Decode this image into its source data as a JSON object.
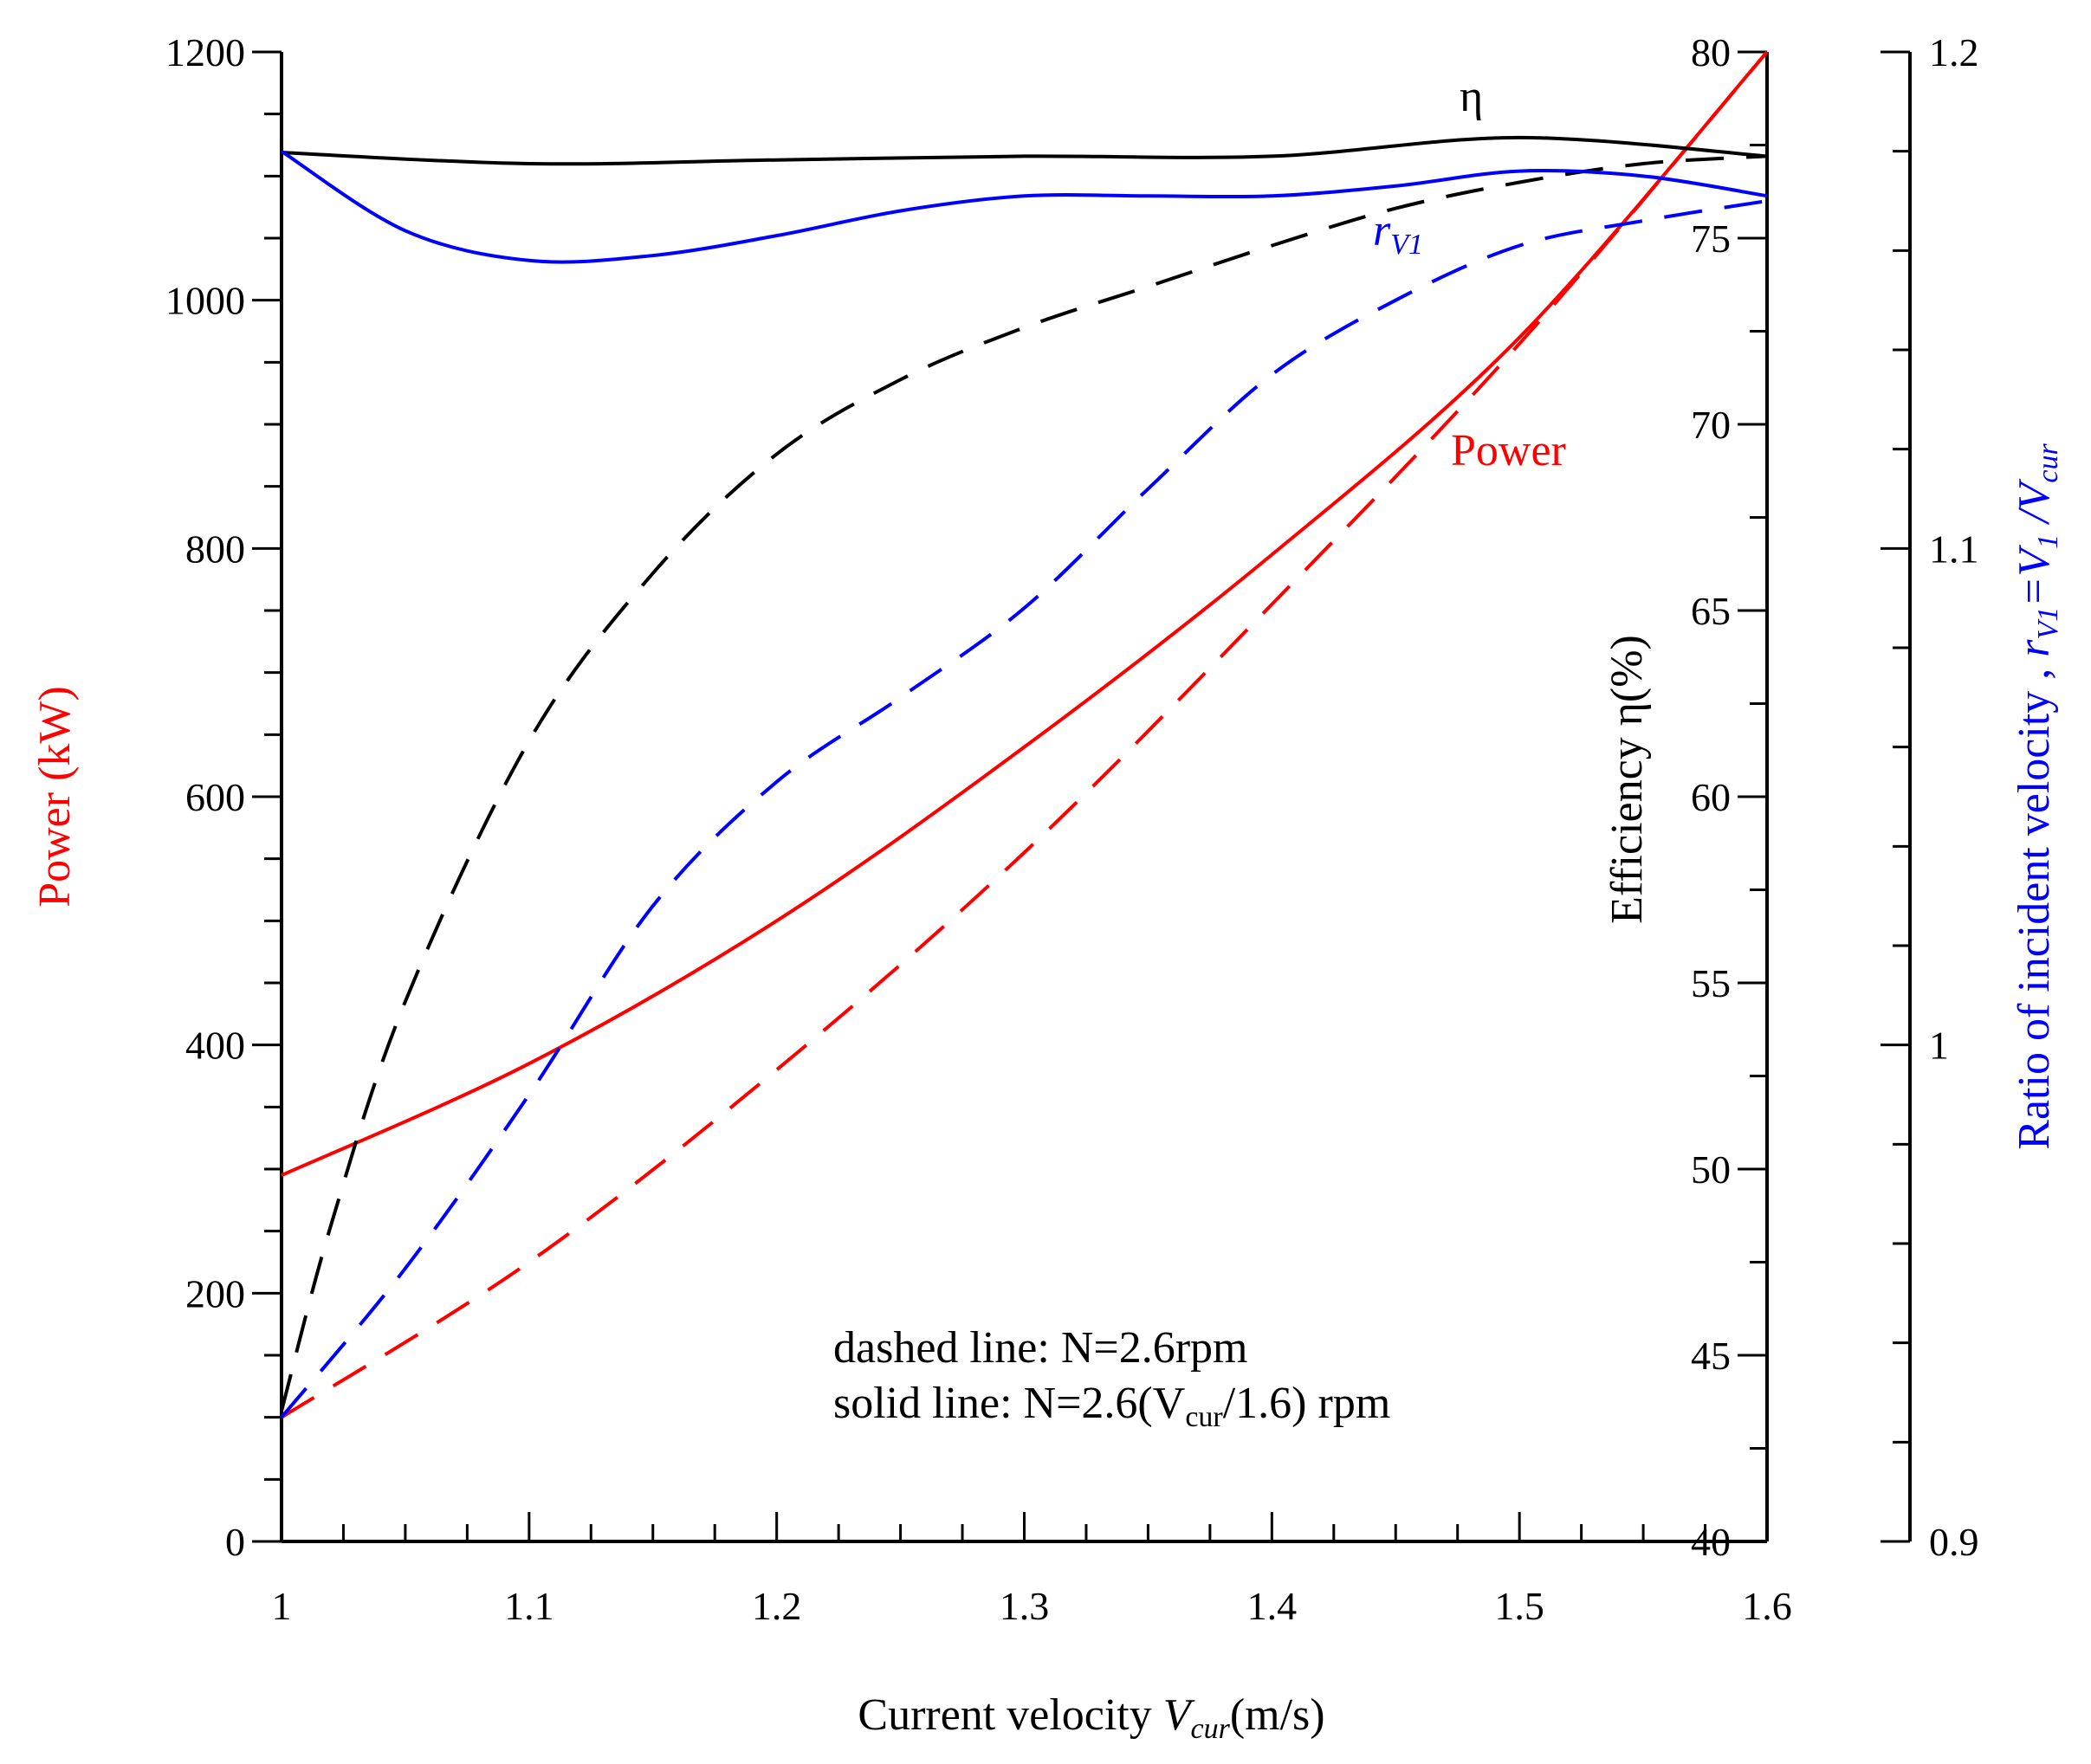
{
  "chart_data": {
    "type": "line",
    "xlabel_main": "Current velocity ",
    "xlabel_symbol": "V",
    "xlabel_sub": "cur",
    "xlabel_unit": "(m/s)",
    "xlim": [
      1.0,
      1.6
    ],
    "x_ticks": [
      "1",
      "1.1",
      "1.2",
      "1.3",
      "1.4",
      "1.5",
      "1.6"
    ],
    "left_axis": {
      "label": "Power (kW)",
      "color": "#ff0000",
      "ylim": [
        0,
        1200
      ],
      "ticks": [
        "0",
        "200",
        "400",
        "600",
        "800",
        "1000",
        "1200"
      ]
    },
    "mid_axis": {
      "label": "Efficiency η(%)",
      "color": "#000000",
      "ylim": [
        40,
        80
      ],
      "ticks": [
        "40",
        "45",
        "50",
        "55",
        "60",
        "65",
        "70",
        "75",
        "80"
      ]
    },
    "right_axis": {
      "label_main": "Ratio of incident velocity , ",
      "label_r": "r",
      "label_r_sub": "V1",
      "label_eq": "=V",
      "label_v1_sub": "1",
      "label_div": " /V",
      "label_vcur_sub": "cur",
      "color": "#0000ff",
      "ylim": [
        0.9,
        1.2
      ],
      "ticks": [
        "0.9",
        "1",
        "1.1",
        "1.2"
      ]
    },
    "series": [
      {
        "name": "Power",
        "style": "solid",
        "color": "#ff0000",
        "axis": "left",
        "x": [
          1.0,
          1.1,
          1.2,
          1.3,
          1.4,
          1.5,
          1.6
        ],
        "y": [
          295,
          385,
          500,
          640,
          795,
          970,
          1200
        ]
      },
      {
        "name": "Power",
        "style": "dashed",
        "color": "#ff0000",
        "axis": "left",
        "x": [
          1.0,
          1.1,
          1.2,
          1.3,
          1.4,
          1.5,
          1.6
        ],
        "y": [
          100,
          225,
          380,
          555,
          755,
          965,
          1200
        ]
      },
      {
        "name": "η",
        "style": "solid",
        "color": "#000000",
        "axis": "mid",
        "x": [
          1.0,
          1.1,
          1.2,
          1.3,
          1.4,
          1.5,
          1.6
        ],
        "y": [
          77.3,
          77.0,
          77.1,
          77.2,
          77.2,
          77.7,
          77.2
        ]
      },
      {
        "name": "η",
        "style": "dashed",
        "color": "#000000",
        "axis": "mid",
        "x": [
          1.0,
          1.02,
          1.05,
          1.1,
          1.15,
          1.2,
          1.25,
          1.3,
          1.35,
          1.4,
          1.45,
          1.5,
          1.55,
          1.6
        ],
        "y": [
          43.5,
          48.5,
          54.5,
          61.5,
          66.0,
          69.2,
          71.2,
          72.6,
          73.7,
          74.8,
          75.8,
          76.5,
          77.0,
          77.2
        ]
      },
      {
        "name": "rV1",
        "style": "solid",
        "color": "#0000ff",
        "axis": "right",
        "x": [
          1.0,
          1.05,
          1.1,
          1.15,
          1.2,
          1.25,
          1.3,
          1.35,
          1.4,
          1.45,
          1.5,
          1.55,
          1.6
        ],
        "y": [
          1.18,
          1.164,
          1.158,
          1.159,
          1.163,
          1.168,
          1.171,
          1.171,
          1.171,
          1.173,
          1.176,
          1.175,
          1.171
        ]
      },
      {
        "name": "rV1",
        "style": "dashed",
        "color": "#0000ff",
        "axis": "right",
        "x": [
          1.0,
          1.05,
          1.1,
          1.15,
          1.2,
          1.25,
          1.3,
          1.35,
          1.4,
          1.45,
          1.5,
          1.55,
          1.6
        ],
        "y": [
          0.925,
          0.955,
          0.99,
          1.028,
          1.053,
          1.07,
          1.088,
          1.112,
          1.135,
          1.15,
          1.161,
          1.166,
          1.17
        ]
      }
    ],
    "annotations": {
      "power_label": "Power",
      "eta_label": "η",
      "rv1_label_r": "r",
      "rv1_label_sub": "V1",
      "legend_line1": "dashed line: N=2.6rpm",
      "legend_line2_pre": "solid line: N=2.6(V",
      "legend_line2_sub": "cur",
      "legend_line2_post": "/1.6) rpm"
    }
  }
}
